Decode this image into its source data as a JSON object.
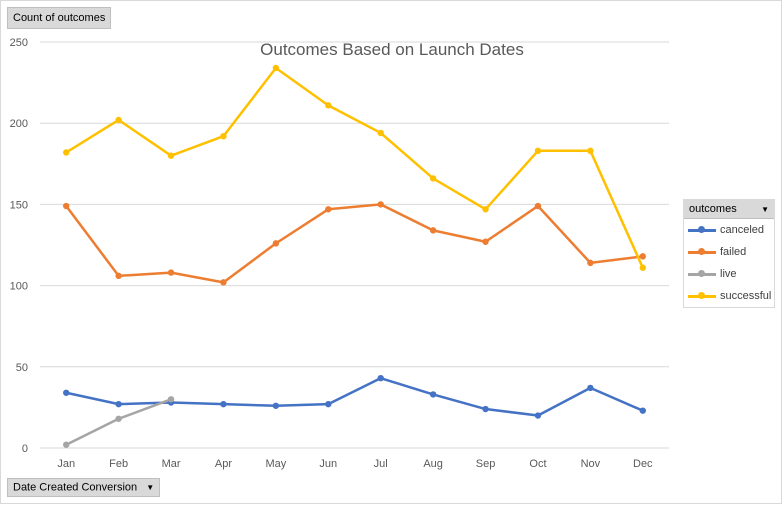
{
  "value_field": {
    "label": "Count of outcomes"
  },
  "axis_field": {
    "label": "Date Created Conversion"
  },
  "legend": {
    "title": "outcomes",
    "items": [
      {
        "label": "canceled",
        "color": "#4472c4"
      },
      {
        "label": "failed",
        "color": "#ed7d31"
      },
      {
        "label": "live",
        "color": "#a5a5a5"
      },
      {
        "label": "successful",
        "color": "#ffc000"
      }
    ]
  },
  "chart_data": {
    "type": "line",
    "title": "Outcomes Based on Launch Dates",
    "xlabel": "",
    "ylabel": "",
    "ylim": [
      0,
      250
    ],
    "yticks": [
      0,
      50,
      100,
      150,
      200,
      250
    ],
    "grid": true,
    "legend_position": "right",
    "categories": [
      "Jan",
      "Feb",
      "Mar",
      "Apr",
      "May",
      "Jun",
      "Jul",
      "Aug",
      "Sep",
      "Oct",
      "Nov",
      "Dec"
    ],
    "series": [
      {
        "name": "canceled",
        "color": "#4472c4",
        "values": [
          34,
          27,
          28,
          27,
          26,
          27,
          43,
          33,
          24,
          20,
          37,
          23
        ]
      },
      {
        "name": "failed",
        "color": "#ed7d31",
        "values": [
          149,
          106,
          108,
          102,
          126,
          147,
          150,
          134,
          127,
          149,
          114,
          118
        ]
      },
      {
        "name": "live",
        "color": "#a5a5a5",
        "values": [
          2,
          18,
          30,
          null,
          null,
          null,
          null,
          null,
          null,
          null,
          null,
          null
        ]
      },
      {
        "name": "successful",
        "color": "#ffc000",
        "values": [
          182,
          202,
          180,
          192,
          234,
          211,
          194,
          166,
          147,
          183,
          183,
          111
        ]
      }
    ]
  }
}
